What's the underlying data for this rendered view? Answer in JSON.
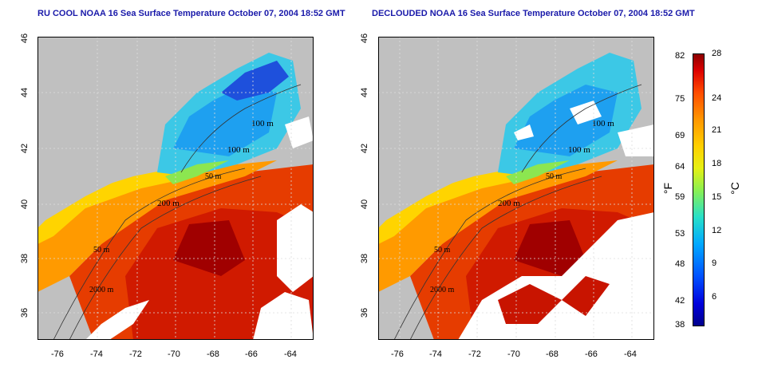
{
  "titles": {
    "left": "RU COOL NOAA 16 Sea Surface Temperature October 07, 2004 18:52 GMT",
    "right": "DECLOUDED NOAA 16 Sea Surface Temperature October 07, 2004 18:52 GMT"
  },
  "x_ticks": [
    "-76",
    "-74",
    "-72",
    "-70",
    "-68",
    "-66",
    "-64"
  ],
  "y_ticks": [
    "46",
    "44",
    "42",
    "40",
    "38",
    "36"
  ],
  "contour_labels": [
    "100 m",
    "100 m",
    "50 m",
    "200 m",
    "50 m",
    "2000 m"
  ],
  "colorbar": {
    "f_ticks": [
      "82",
      "75",
      "69",
      "64",
      "59",
      "53",
      "48",
      "42",
      "38"
    ],
    "c_ticks": [
      "28",
      "24",
      "21",
      "18",
      "15",
      "12",
      "9",
      "6"
    ],
    "unit_f": "°F",
    "unit_c": "°C"
  }
}
